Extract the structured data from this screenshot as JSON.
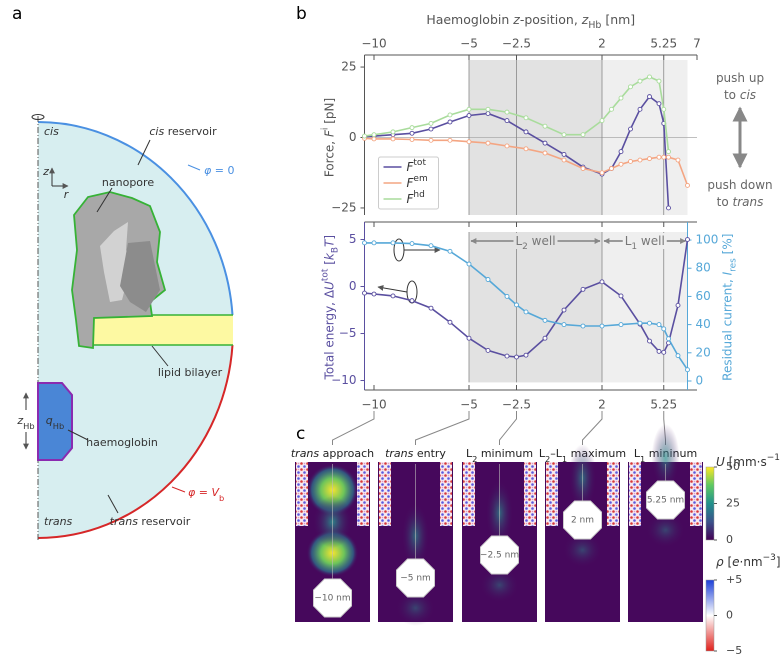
{
  "panel_labels": [
    "a",
    "b",
    "c"
  ],
  "panel_a": {
    "cis": "cis",
    "cis_reservoir": "cis reservoir",
    "phi0": "φ = 0",
    "z": "z",
    "r": "r",
    "nanopore": "nanopore",
    "lipid_bilayer": "lipid bilayer",
    "zhb": "zHb",
    "qhb": "qHb",
    "haemoglobin": "haemoglobin",
    "phivb": "φ = Vb",
    "trans": "trans",
    "trans_reservoir": "trans reservoir"
  },
  "chart_data": [
    {
      "type": "line",
      "xlabel": "Haemoglobin z-position, zHb [nm]",
      "ylabel": "Force, Fi [pN]",
      "xlim": [
        -10.5,
        7
      ],
      "xticks": [
        {
          "value": -10,
          "label": "−10"
        },
        {
          "value": -5,
          "label": "−5"
        },
        {
          "value": -2.5,
          "label": "−2.5"
        },
        2,
        5.25,
        7
      ],
      "ylim": [
        -27.5,
        27.5
      ],
      "yticks": [
        {
          "value": -25,
          "label": "−25"
        },
        0,
        25
      ],
      "spans": [
        [
          -5,
          2
        ],
        [
          2,
          6.5
        ]
      ],
      "shade_colors": [
        "#e2e2e2",
        "#efefef"
      ],
      "legend": "lower left",
      "annotations": [
        [
          "push up",
          "to cis"
        ],
        [
          "push down",
          "to trans"
        ]
      ],
      "x": [
        -10.5,
        -10,
        -9,
        -8,
        -7,
        -6,
        -5,
        -4,
        -3,
        -2,
        -1,
        0,
        1,
        2,
        2.5,
        3,
        3.5,
        4,
        4.5,
        5,
        5.25,
        5.5,
        6,
        6.5
      ],
      "series": [
        {
          "name": "Ftot",
          "color": "#5a4fa0",
          "values": [
            0.3,
            0.5,
            1,
            1.5,
            3,
            5.5,
            7.8,
            8.5,
            6,
            2,
            -2,
            -6,
            -10.5,
            -13,
            -11,
            -5,
            3,
            10,
            14.5,
            12,
            5,
            -25,
            null,
            null
          ]
        },
        {
          "name": "Fem",
          "color": "#f4a582",
          "values": [
            -0.3,
            -0.5,
            -0.5,
            -0.7,
            -1,
            -1,
            -1.5,
            -2,
            -3,
            -4,
            -5.5,
            -8,
            -11,
            -12.5,
            -11,
            -9.5,
            -8.5,
            -8,
            -7.5,
            -7,
            -7,
            -7,
            -8,
            -17
          ]
        },
        {
          "name": "Fhd",
          "color": "#a9dc9c",
          "values": [
            0.5,
            1,
            2,
            3.5,
            5,
            8,
            10,
            10,
            9,
            7,
            4,
            1,
            1,
            6,
            10,
            14,
            18,
            20,
            21.5,
            20,
            10,
            -5,
            null,
            null
          ]
        }
      ]
    },
    {
      "type": "line",
      "ylabel": "Total energy, ΔUtot [kBT]",
      "y2label": "Residual current, Ires [%]",
      "xlim": [
        -10.5,
        7
      ],
      "xticks": [
        {
          "value": -10,
          "label": "−10"
        },
        {
          "value": -5,
          "label": "−5"
        },
        {
          "value": -2.5,
          "label": "−2.5"
        },
        2,
        5.25
      ],
      "ylim": [
        -10.2,
        5.8
      ],
      "yticks": [
        {
          "value": -10,
          "label": "−10"
        },
        {
          "value": -5,
          "label": "−5"
        },
        0,
        5
      ],
      "y2lim": [
        -1,
        105.7
      ],
      "y2ticks": [
        0,
        20,
        40,
        60,
        80,
        100
      ],
      "spans": [
        [
          -5,
          2
        ],
        [
          2,
          6.5
        ]
      ],
      "shade_colors": [
        "#e2e2e2",
        "#efefef"
      ],
      "span_labels": [
        "L2 well",
        "L1 well"
      ],
      "x": [
        -10.5,
        -10,
        -9,
        -8,
        -7,
        -6,
        -5,
        -4,
        -3,
        -2.5,
        -2,
        -1,
        0,
        1,
        2,
        3,
        4,
        4.5,
        5,
        5.25,
        5.5,
        6,
        6.5
      ],
      "series": [
        {
          "name": "ΔUtot",
          "color": "#5a4fa0",
          "values": [
            -0.7,
            -0.8,
            -1,
            -1.5,
            -2.3,
            -3.8,
            -5.5,
            -6.8,
            -7.4,
            -7.5,
            -7.3,
            -5.5,
            -2.5,
            -0.3,
            0.5,
            -1,
            -4,
            -5.8,
            -6.9,
            -7,
            -6,
            -2,
            5
          ]
        },
        {
          "name": "Ires",
          "color": "#56a8d8",
          "axis": "y2",
          "values": [
            98,
            98,
            98,
            97.5,
            96,
            92,
            83,
            72,
            60,
            54,
            49,
            43,
            40,
            39,
            39,
            40,
            41,
            41,
            40,
            37,
            30,
            18,
            8
          ]
        }
      ]
    }
  ],
  "panel_c": {
    "snapshots": [
      {
        "title": "trans approach",
        "position": "−10 nm"
      },
      {
        "title": "trans entry",
        "position": "−5 nm"
      },
      {
        "title": "L2 minimum",
        "position": "−2.5 nm"
      },
      {
        "title": "L2–L1 maximum",
        "position": "2 nm"
      },
      {
        "title": "L1 mininum",
        "position": "5.25 nm"
      }
    ],
    "colorbar_u": {
      "label": "U [mm·s−1]",
      "lim": [
        0,
        50
      ],
      "ticks": [
        0,
        25,
        50
      ]
    },
    "colorbar_rho": {
      "label": "ρ [e·nm−3]",
      "lim": [
        -5,
        5
      ],
      "ticks": [
        {
          "value": -5,
          "label": "−5"
        },
        0,
        {
          "value": 5,
          "label": "+5"
        }
      ]
    }
  }
}
